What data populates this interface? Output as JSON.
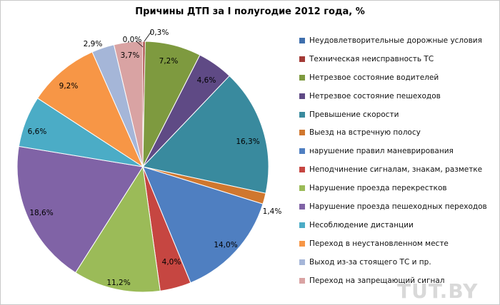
{
  "chart_data": {
    "type": "pie",
    "title": "Причины ДТП за I полугодие 2012 года, %",
    "legend_position": "right",
    "slices": [
      {
        "name": "Неудовлетворительные дорожные условия",
        "value": 0.0,
        "label": "0,0%",
        "color": "#3f6fad"
      },
      {
        "name": "Техническая неисправность ТС",
        "value": 0.3,
        "label": "0,3%",
        "color": "#a33a36"
      },
      {
        "name": "Нетрезвое состояние водителей",
        "value": 7.2,
        "label": "7,2%",
        "color": "#7e9a3f"
      },
      {
        "name": "Нетрезвое состояние пешеходов",
        "value": 4.6,
        "label": "4,6%",
        "color": "#5f4a85"
      },
      {
        "name": "Превышение скорости",
        "value": 16.3,
        "label": "16,3%",
        "color": "#398a9e"
      },
      {
        "name": "Выезд на встречную полосу",
        "value": 1.4,
        "label": "1,4%",
        "color": "#d0772e"
      },
      {
        "name": "нарушение правил маневрирования",
        "value": 14.0,
        "label": "14,0%",
        "color": "#4f7fc1"
      },
      {
        "name": "Неподчинение сигналам, знакам, разметке",
        "value": 4.0,
        "label": "4,0%",
        "color": "#c64641"
      },
      {
        "name": "Нарушение проезда перекрестков",
        "value": 11.2,
        "label": "11,2%",
        "color": "#9bbb58"
      },
      {
        "name": "Нарушение проезда пешеходных переходов",
        "value": 18.6,
        "label": "18,6%",
        "color": "#8063a6"
      },
      {
        "name": "Несоблюдение дистанции",
        "value": 6.6,
        "label": "6,6%",
        "color": "#4bacc6"
      },
      {
        "name": "Переход в неустановленном месте",
        "value": 9.2,
        "label": "9,2%",
        "color": "#f79646"
      },
      {
        "name": "Выход из-за стоящего ТС и пр.",
        "value": 2.9,
        "label": "2,9%",
        "color": "#a5b6d8"
      },
      {
        "name": "Переход на запрещающий сигнал",
        "value": 3.7,
        "label": "3,7%",
        "color": "#d9a3a3"
      }
    ]
  },
  "watermark": "TUT.BY"
}
